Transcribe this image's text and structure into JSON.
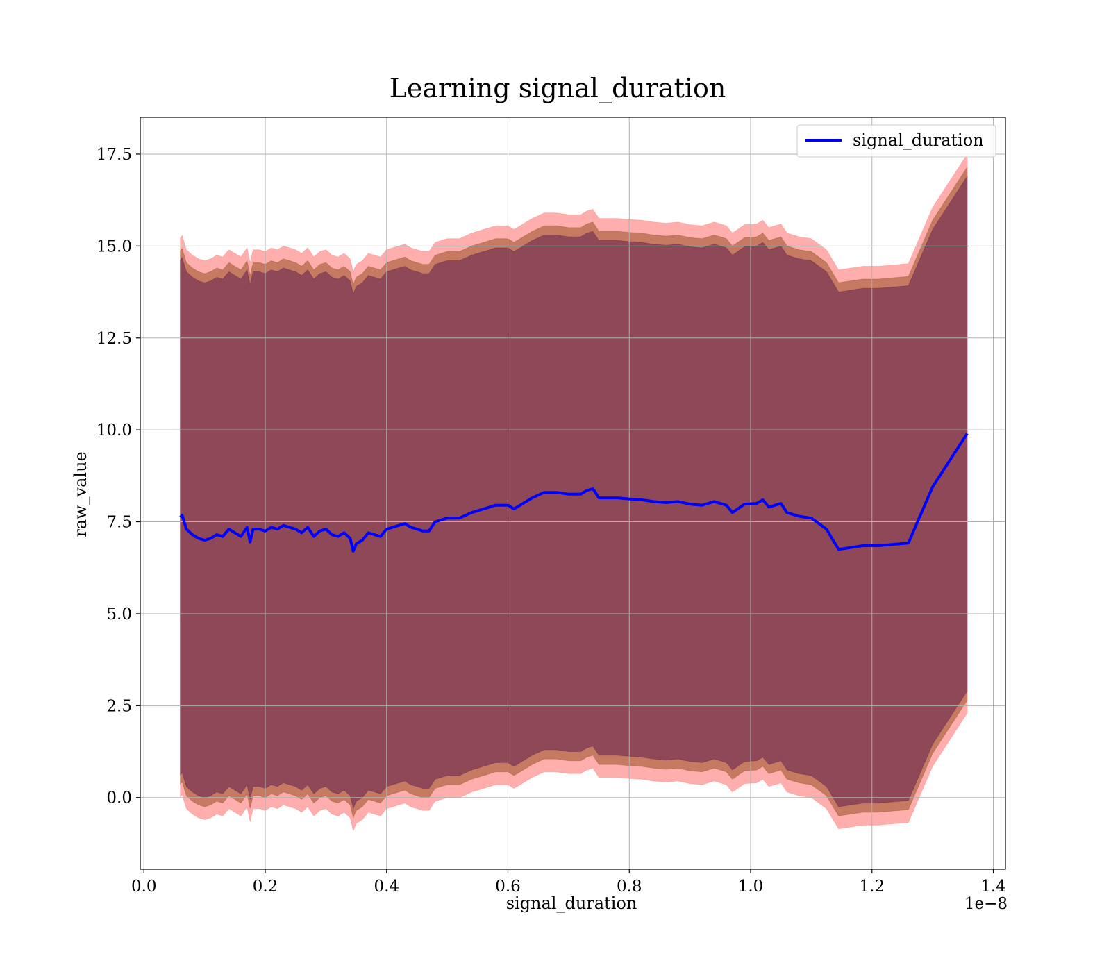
{
  "chart_data": {
    "type": "line",
    "title": "Learning signal_duration",
    "xlabel": "signal_duration",
    "ylabel": "raw_value",
    "x_offset_label": "1e−8",
    "xlim": [
      -0.006,
      1.42
    ],
    "ylim": [
      -1.95,
      18.5
    ],
    "x_ticks": [
      0.0,
      0.2,
      0.4,
      0.6,
      0.8,
      1.0,
      1.2,
      1.4
    ],
    "x_tick_labels": [
      "0.0",
      "0.2",
      "0.4",
      "0.6",
      "0.8",
      "1.0",
      "1.2",
      "1.4"
    ],
    "y_ticks": [
      0.0,
      2.5,
      5.0,
      7.5,
      10.0,
      12.5,
      15.0,
      17.5
    ],
    "y_tick_labels": [
      "0.0",
      "2.5",
      "5.0",
      "7.5",
      "10.0",
      "12.5",
      "15.0",
      "17.5"
    ],
    "grid": true,
    "legend_position": "top-right",
    "series": [
      {
        "name": "signal_duration",
        "color": "#0000ff",
        "x": [
          0.06,
          0.063,
          0.07,
          0.08,
          0.09,
          0.1,
          0.11,
          0.12,
          0.13,
          0.14,
          0.15,
          0.16,
          0.17,
          0.175,
          0.18,
          0.19,
          0.2,
          0.21,
          0.22,
          0.23,
          0.24,
          0.25,
          0.26,
          0.27,
          0.28,
          0.29,
          0.3,
          0.31,
          0.32,
          0.33,
          0.34,
          0.345,
          0.35,
          0.36,
          0.37,
          0.38,
          0.39,
          0.4,
          0.41,
          0.42,
          0.43,
          0.44,
          0.45,
          0.46,
          0.47,
          0.48,
          0.5,
          0.52,
          0.54,
          0.56,
          0.58,
          0.6,
          0.61,
          0.62,
          0.64,
          0.66,
          0.68,
          0.7,
          0.72,
          0.73,
          0.74,
          0.75,
          0.78,
          0.8,
          0.82,
          0.84,
          0.86,
          0.88,
          0.9,
          0.92,
          0.94,
          0.96,
          0.97,
          0.99,
          1.01,
          1.02,
          1.03,
          1.05,
          1.06,
          1.08,
          1.1,
          1.125,
          1.145,
          1.185,
          1.21,
          1.26,
          1.3,
          1.357
        ],
        "y": [
          7.62,
          7.68,
          7.3,
          7.15,
          7.05,
          7.0,
          7.05,
          7.15,
          7.1,
          7.3,
          7.2,
          7.1,
          7.35,
          6.95,
          7.3,
          7.3,
          7.25,
          7.35,
          7.3,
          7.4,
          7.35,
          7.3,
          7.2,
          7.35,
          7.1,
          7.25,
          7.3,
          7.15,
          7.1,
          7.2,
          7.05,
          6.7,
          6.9,
          7.0,
          7.2,
          7.15,
          7.1,
          7.3,
          7.35,
          7.4,
          7.45,
          7.35,
          7.3,
          7.25,
          7.25,
          7.5,
          7.6,
          7.6,
          7.75,
          7.85,
          7.95,
          7.95,
          7.85,
          7.95,
          8.15,
          8.3,
          8.3,
          8.25,
          8.25,
          8.35,
          8.4,
          8.15,
          8.15,
          8.12,
          8.1,
          8.05,
          8.02,
          8.05,
          7.98,
          7.95,
          8.05,
          7.95,
          7.75,
          7.98,
          8.0,
          8.1,
          7.9,
          8.0,
          7.75,
          7.65,
          7.6,
          7.3,
          6.75,
          6.85,
          6.85,
          6.92,
          8.45,
          9.9
        ]
      }
    ],
    "bands": [
      {
        "name": "",
        "color": "#ff6b6b",
        "opacity": 0.55,
        "offset": 7.6
      },
      {
        "name": "",
        "color": "#8b4513",
        "opacity": 0.5,
        "offset": 7.25
      },
      {
        "name": "",
        "color": "#4b0b4b",
        "opacity": 0.45,
        "offset": 7.0
      }
    ]
  }
}
